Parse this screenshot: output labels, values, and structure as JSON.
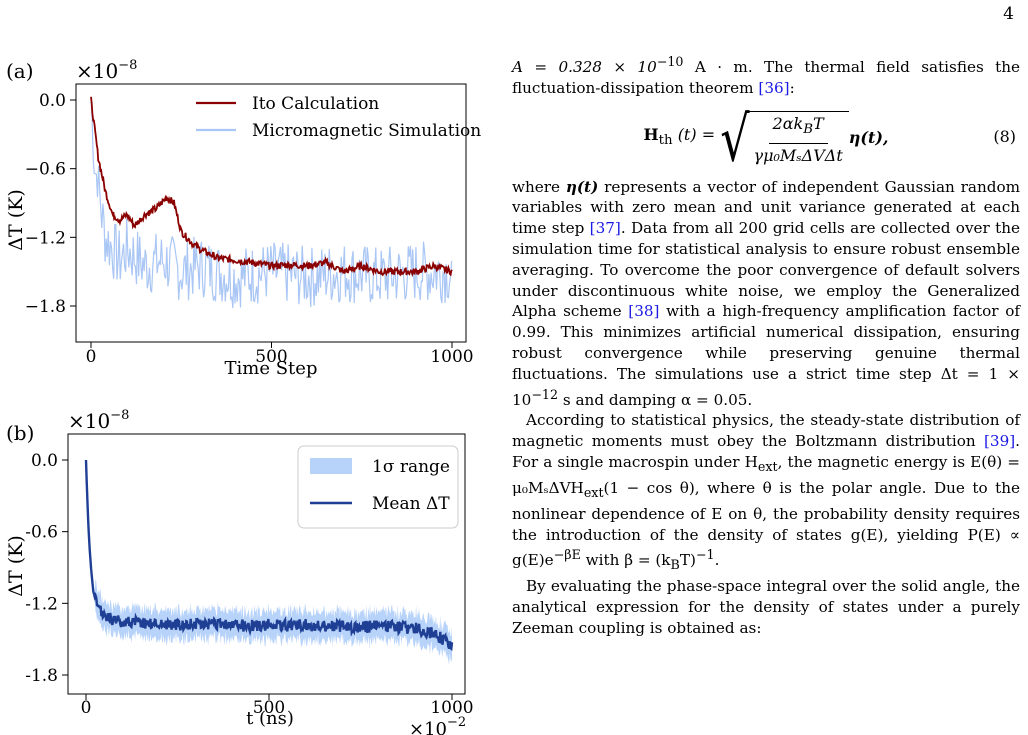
{
  "page": {
    "number": "4"
  },
  "figure": {
    "panel_a": {
      "label": "(a)",
      "exponent": "×10",
      "exponent_power": "−8",
      "ylabel": "ΔT (K)",
      "xlabel": "Time Step",
      "yticks": [
        "0.0",
        "−0.6",
        "−1.2",
        "−1.8"
      ],
      "xticks": [
        "0",
        "500",
        "1000"
      ],
      "legend": [
        "Ito Calculation",
        "Micromagnetic Simulation"
      ],
      "colors": {
        "ito": "#8b0000",
        "micromagnetic": "#a9c6f5"
      }
    },
    "panel_b": {
      "label": "(b)",
      "exponent": "×10",
      "exponent_power": "−8",
      "ylabel": "ΔT (K)",
      "xlabel": "t (ns)",
      "x_exponent": "×10",
      "x_exponent_power": "−2",
      "yticks": [
        "0.0",
        "-0.6",
        "-1.2",
        "-1.8"
      ],
      "xticks": [
        "0",
        "500",
        "1000"
      ],
      "legend": [
        "1σ range",
        "Mean ΔT"
      ],
      "colors": {
        "band": "#b8d3fa",
        "mean": "#1f3f95"
      }
    }
  },
  "chart_data": [
    {
      "type": "line",
      "xlabel": "Time Step",
      "ylabel": "ΔT (K)",
      "xlim": [
        0,
        1000
      ],
      "ylim": [
        -2.0,
        0.1
      ],
      "y_scale_factor": "1e-8",
      "legend_position": "top-right",
      "series": [
        {
          "name": "Ito Calculation",
          "x": [
            0,
            10,
            20,
            30,
            40,
            60,
            80,
            100,
            120,
            150,
            180,
            210,
            230,
            250,
            280,
            300,
            350,
            400,
            450,
            500,
            550,
            600,
            650,
            700,
            750,
            800,
            850,
            900,
            950,
            1000
          ],
          "y": [
            0.0,
            -0.25,
            -0.5,
            -0.65,
            -0.8,
            -1.0,
            -1.05,
            -1.0,
            -1.1,
            -1.0,
            -0.95,
            -0.85,
            -0.9,
            -1.15,
            -1.25,
            -1.3,
            -1.38,
            -1.4,
            -1.42,
            -1.45,
            -1.44,
            -1.45,
            -1.42,
            -1.5,
            -1.45,
            -1.5,
            -1.5,
            -1.5,
            -1.45,
            -1.5
          ]
        },
        {
          "name": "Micromagnetic Simulation",
          "x": [
            0,
            10,
            20,
            30,
            40,
            60,
            80,
            100,
            150,
            200,
            250,
            300,
            400,
            500,
            600,
            700,
            800,
            900,
            1000
          ],
          "y": [
            0.0,
            -0.6,
            -0.7,
            -1.0,
            -1.2,
            -1.3,
            -1.4,
            -1.3,
            -1.45,
            -1.4,
            -1.5,
            -1.45,
            -1.55,
            -1.5,
            -1.55,
            -1.5,
            -1.55,
            -1.5,
            -1.5
          ]
        }
      ]
    },
    {
      "type": "area",
      "xlabel": "t (ns)",
      "ylabel": "ΔT (K)",
      "xlim": [
        0,
        1000
      ],
      "ylim": [
        -2.0,
        0.1
      ],
      "y_scale_factor": "1e-8",
      "x_scale_factor": "1e-2",
      "legend_position": "top-right",
      "series": [
        {
          "name": "Mean ΔT",
          "x": [
            0,
            5,
            10,
            15,
            20,
            30,
            40,
            60,
            80,
            100,
            150,
            200,
            250,
            300,
            350,
            400,
            450,
            500,
            550,
            600,
            650,
            700,
            750,
            800,
            850,
            900,
            950,
            1000
          ],
          "y": [
            0.0,
            -0.45,
            -0.75,
            -0.95,
            -1.1,
            -1.22,
            -1.27,
            -1.32,
            -1.35,
            -1.35,
            -1.36,
            -1.37,
            -1.38,
            -1.37,
            -1.38,
            -1.38,
            -1.39,
            -1.38,
            -1.39,
            -1.38,
            -1.39,
            -1.39,
            -1.4,
            -1.39,
            -1.4,
            -1.41,
            -1.45,
            -1.55
          ]
        },
        {
          "name": "1σ range",
          "band_halfwidth": 0.12
        }
      ]
    }
  ],
  "text": {
    "line1": "A = 0.328 × 10",
    "line1_exp": "−10",
    "line1_tail": " A · m. The thermal field satisfies the fluctuation-dissipation theorem ",
    "cite36": "[36]",
    "colon": ":",
    "eq_lhs": "H",
    "eq_lhs_sub": "th",
    "eq_lhs_arg": "(t) =",
    "eq_num_top": "2αk",
    "eq_num_sub": "B",
    "eq_num_tail": "T",
    "eq_den": "γμ₀MₛΔVΔt",
    "eq_tail": "η(t),",
    "eq_label": "(8)",
    "p1a": "where ",
    "p1_eta": "η(t)",
    "p1b": " represents a vector of independent Gaussian random variables with zero mean and unit variance generated at each time step ",
    "cite37": "[37]",
    "p1c": ". Data from all 200 grid cells are collected over the simulation time for statistical analysis to ensure robust ensemble averaging. To overcome the poor convergence of default solvers under discontinuous white noise, we employ the Generalized Alpha scheme ",
    "cite38": "[38]",
    "p1d": " with a high-frequency amplification factor of 0.99. This minimizes artificial numerical dissipation, ensuring robust convergence while preserving genuine thermal fluctuations. The simulations use a strict time step Δt = 1 × 10",
    "p1d_exp": "−12",
    "p1e": " s and damping α = 0.05.",
    "p2a": "According to statistical physics, the steady-state distribution of magnetic moments must obey the Boltzmann distribution ",
    "cite39": "[39]",
    "p2b": ". For a single macrospin under H",
    "p2b_sub": "ext",
    "p2c": ", the magnetic energy is E(θ) = μ₀MₛΔVH",
    "p2c_sub": "ext",
    "p2d": "(1 − cos θ), where θ is the polar angle. Due to the nonlinear dependence of E on θ, the probability density requires the introduction of the density of states g(E), yielding P(E) ∝ g(E)e",
    "p2d_exp": "−βE",
    "p2e": " with β = (k",
    "p2e_sub": "B",
    "p2f": "T)",
    "p2f_exp": "−1",
    "p2g": ".",
    "p3": "By evaluating the phase-space integral over the solid angle, the analytical expression for the density of states under a purely Zeeman coupling is obtained as:"
  }
}
